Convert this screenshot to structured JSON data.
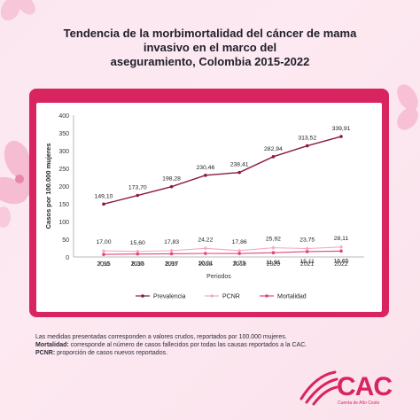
{
  "title_lines": [
    "Tendencia de la morbimortalidad del cáncer de mama",
    "invasivo en el marco del",
    "aseguramiento, Colombia 2015-2022"
  ],
  "chart_data": {
    "type": "line",
    "categories": [
      "2015",
      "2016",
      "2017",
      "2018",
      "2019",
      "2020",
      "2021",
      "2022"
    ],
    "series": [
      {
        "name": "Prevalencia",
        "color": "#8b1a45",
        "values": [
          149.1,
          173.7,
          198.28,
          230.46,
          238.41,
          282.94,
          313.52,
          339.91
        ],
        "labels": [
          "149,10",
          "173,70",
          "198,28",
          "230,46",
          "238,41",
          "282,94",
          "313,52",
          "339,91"
        ]
      },
      {
        "name": "PCNR",
        "color": "#f4a6c4",
        "values": [
          17.0,
          15.6,
          17.83,
          24.22,
          17.86,
          25.92,
          23.75,
          28.11
        ],
        "labels": [
          "17,00",
          "15,60",
          "17,83",
          "24,22",
          "17,86",
          "25,92",
          "23,75",
          "28,11"
        ]
      },
      {
        "name": "Mortalidad",
        "color": "#e0457d",
        "values": [
          7.3,
          8.3,
          8.96,
          10.01,
          9.73,
          11.91,
          15.11,
          16.65
        ],
        "labels": [
          "7,30",
          "8,30",
          "8,96",
          "10,01",
          "9,73",
          "11,91",
          "15,11",
          "16,65"
        ]
      }
    ],
    "xlabel": "Periodos",
    "ylabel": "Casos por 100.000 mujeres",
    "ylim": [
      0,
      400
    ],
    "yticks": [
      0,
      50,
      100,
      150,
      200,
      250,
      300,
      350,
      400
    ],
    "grid": false,
    "legend": "bottom"
  },
  "footnote": {
    "line1": "Las medidas presentadas corresponden a valores crudos, reportados por 100.000 mujeres.",
    "mortalidad_label": "Mortalidad:",
    "mortalidad_text": " corresponde al número de casos fallecidos por todas las causas reportados a la CAC.",
    "pcnr_label": "PCNR:",
    "pcnr_text": " proporción de casos nuevos reportados."
  },
  "logo": {
    "name": "CAC",
    "subtitle": "Cuenta de Alto Costo",
    "color": "#d8245f"
  }
}
